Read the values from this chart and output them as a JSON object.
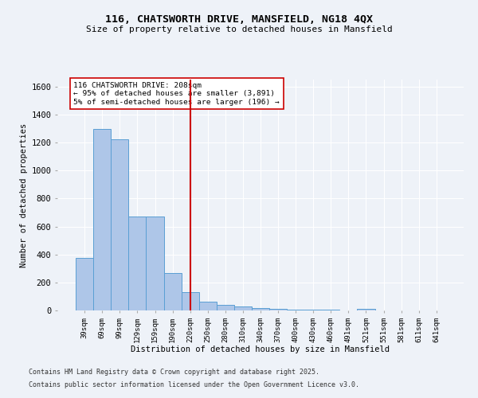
{
  "title_line1": "116, CHATSWORTH DRIVE, MANSFIELD, NG18 4QX",
  "title_line2": "Size of property relative to detached houses in Mansfield",
  "xlabel": "Distribution of detached houses by size in Mansfield",
  "ylabel": "Number of detached properties",
  "bar_labels": [
    "39sqm",
    "69sqm",
    "99sqm",
    "129sqm",
    "159sqm",
    "190sqm",
    "220sqm",
    "250sqm",
    "280sqm",
    "310sqm",
    "340sqm",
    "370sqm",
    "400sqm",
    "430sqm",
    "460sqm",
    "491sqm",
    "521sqm",
    "551sqm",
    "581sqm",
    "611sqm",
    "641sqm"
  ],
  "bar_values": [
    375,
    1295,
    1225,
    670,
    670,
    270,
    130,
    65,
    38,
    28,
    18,
    12,
    8,
    5,
    3,
    0,
    12,
    0,
    0,
    0,
    0
  ],
  "bar_color": "#aec6e8",
  "bar_edge_color": "#5a9fd4",
  "vline_x": 6.0,
  "vline_color": "#cc0000",
  "annotation_text": "116 CHATSWORTH DRIVE: 208sqm\n← 95% of detached houses are smaller (3,891)\n5% of semi-detached houses are larger (196) →",
  "annotation_box_color": "#ffffff",
  "annotation_box_edge": "#cc0000",
  "ylim": [
    0,
    1650
  ],
  "yticks": [
    0,
    200,
    400,
    600,
    800,
    1000,
    1200,
    1400,
    1600
  ],
  "footer_line1": "Contains HM Land Registry data © Crown copyright and database right 2025.",
  "footer_line2": "Contains public sector information licensed under the Open Government Licence v3.0.",
  "bg_color": "#eef2f8",
  "plot_bg_color": "#eef2f8",
  "grid_color": "#ffffff"
}
